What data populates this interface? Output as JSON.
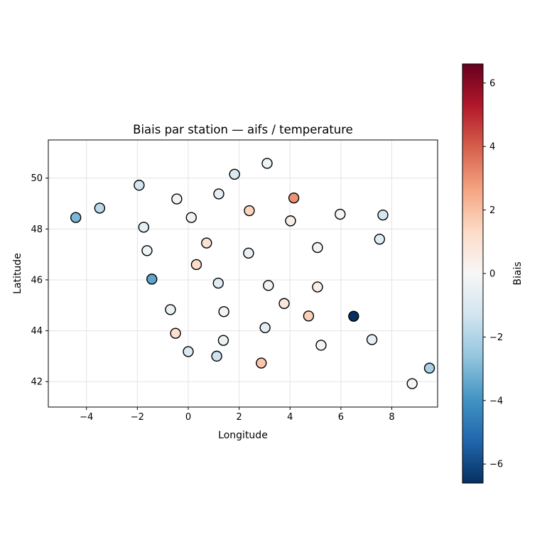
{
  "chart_data": {
    "type": "scatter",
    "title": "Biais par station — aifs / temperature",
    "xlabel": "Longitude",
    "ylabel": "Latitude",
    "xlim": [
      -5.5,
      9.8
    ],
    "ylim": [
      41.0,
      51.5
    ],
    "xticks": [
      -4,
      -2,
      0,
      2,
      4,
      6,
      8
    ],
    "yticks": [
      42,
      44,
      46,
      48,
      50
    ],
    "grid": true,
    "colorbar": {
      "label": "Biais",
      "range": [
        -6.6,
        6.6
      ],
      "ticks": [
        -6,
        -4,
        -2,
        0,
        2,
        4,
        6
      ],
      "tick_labels": [
        "−6",
        "−4",
        "−2",
        "0",
        "2",
        "4",
        "6"
      ],
      "colormap": "RdBu_r",
      "colors": [
        "#053061",
        "#2166ac",
        "#4393c3",
        "#92c5de",
        "#d1e5f0",
        "#f7f7f7",
        "#fddbc7",
        "#f4a582",
        "#d6604d",
        "#b2182b",
        "#67001f"
      ]
    },
    "points": [
      {
        "x": 3.1,
        "y": 50.58,
        "bias": -0.3
      },
      {
        "x": 1.82,
        "y": 50.15,
        "bias": -1.0
      },
      {
        "x": -1.93,
        "y": 49.72,
        "bias": -1.2
      },
      {
        "x": 1.2,
        "y": 49.38,
        "bias": -0.6
      },
      {
        "x": -0.45,
        "y": 49.18,
        "bias": -0.2
      },
      {
        "x": 4.15,
        "y": 49.22,
        "bias": 3.0
      },
      {
        "x": -3.48,
        "y": 48.82,
        "bias": -1.8
      },
      {
        "x": 2.4,
        "y": 48.72,
        "bias": 1.5
      },
      {
        "x": -4.42,
        "y": 48.45,
        "bias": -3.0
      },
      {
        "x": 0.12,
        "y": 48.45,
        "bias": -0.3
      },
      {
        "x": 5.97,
        "y": 48.58,
        "bias": -0.1
      },
      {
        "x": 7.65,
        "y": 48.55,
        "bias": -1.2
      },
      {
        "x": 4.02,
        "y": 48.32,
        "bias": 0.5
      },
      {
        "x": -1.75,
        "y": 48.07,
        "bias": -0.6
      },
      {
        "x": 7.52,
        "y": 47.6,
        "bias": -0.8
      },
      {
        "x": 0.72,
        "y": 47.45,
        "bias": 1.0
      },
      {
        "x": 5.08,
        "y": 47.27,
        "bias": -0.2
      },
      {
        "x": -1.62,
        "y": 47.15,
        "bias": -0.3
      },
      {
        "x": 2.37,
        "y": 47.05,
        "bias": -0.5
      },
      {
        "x": 0.32,
        "y": 46.6,
        "bias": 1.3
      },
      {
        "x": -1.43,
        "y": 46.03,
        "bias": -3.5
      },
      {
        "x": 1.18,
        "y": 45.87,
        "bias": -0.8
      },
      {
        "x": 3.15,
        "y": 45.78,
        "bias": -0.2
      },
      {
        "x": 5.08,
        "y": 45.72,
        "bias": 0.4
      },
      {
        "x": 3.77,
        "y": 45.07,
        "bias": 0.8
      },
      {
        "x": -0.7,
        "y": 44.83,
        "bias": -0.5
      },
      {
        "x": 1.4,
        "y": 44.75,
        "bias": -0.2
      },
      {
        "x": 4.73,
        "y": 44.58,
        "bias": 1.6
      },
      {
        "x": 6.5,
        "y": 44.57,
        "bias": -6.6
      },
      {
        "x": 3.02,
        "y": 44.12,
        "bias": -0.7
      },
      {
        "x": -0.5,
        "y": 43.9,
        "bias": 1.1
      },
      {
        "x": 7.22,
        "y": 43.65,
        "bias": -0.6
      },
      {
        "x": 1.38,
        "y": 43.62,
        "bias": -0.4
      },
      {
        "x": 5.22,
        "y": 43.43,
        "bias": -0.2
      },
      {
        "x": 0.0,
        "y": 43.18,
        "bias": -1.0
      },
      {
        "x": 1.12,
        "y": 43.0,
        "bias": -1.4
      },
      {
        "x": 2.87,
        "y": 42.73,
        "bias": 1.8
      },
      {
        "x": 9.48,
        "y": 42.53,
        "bias": -2.2
      },
      {
        "x": 8.8,
        "y": 41.92,
        "bias": -0.1
      }
    ]
  }
}
